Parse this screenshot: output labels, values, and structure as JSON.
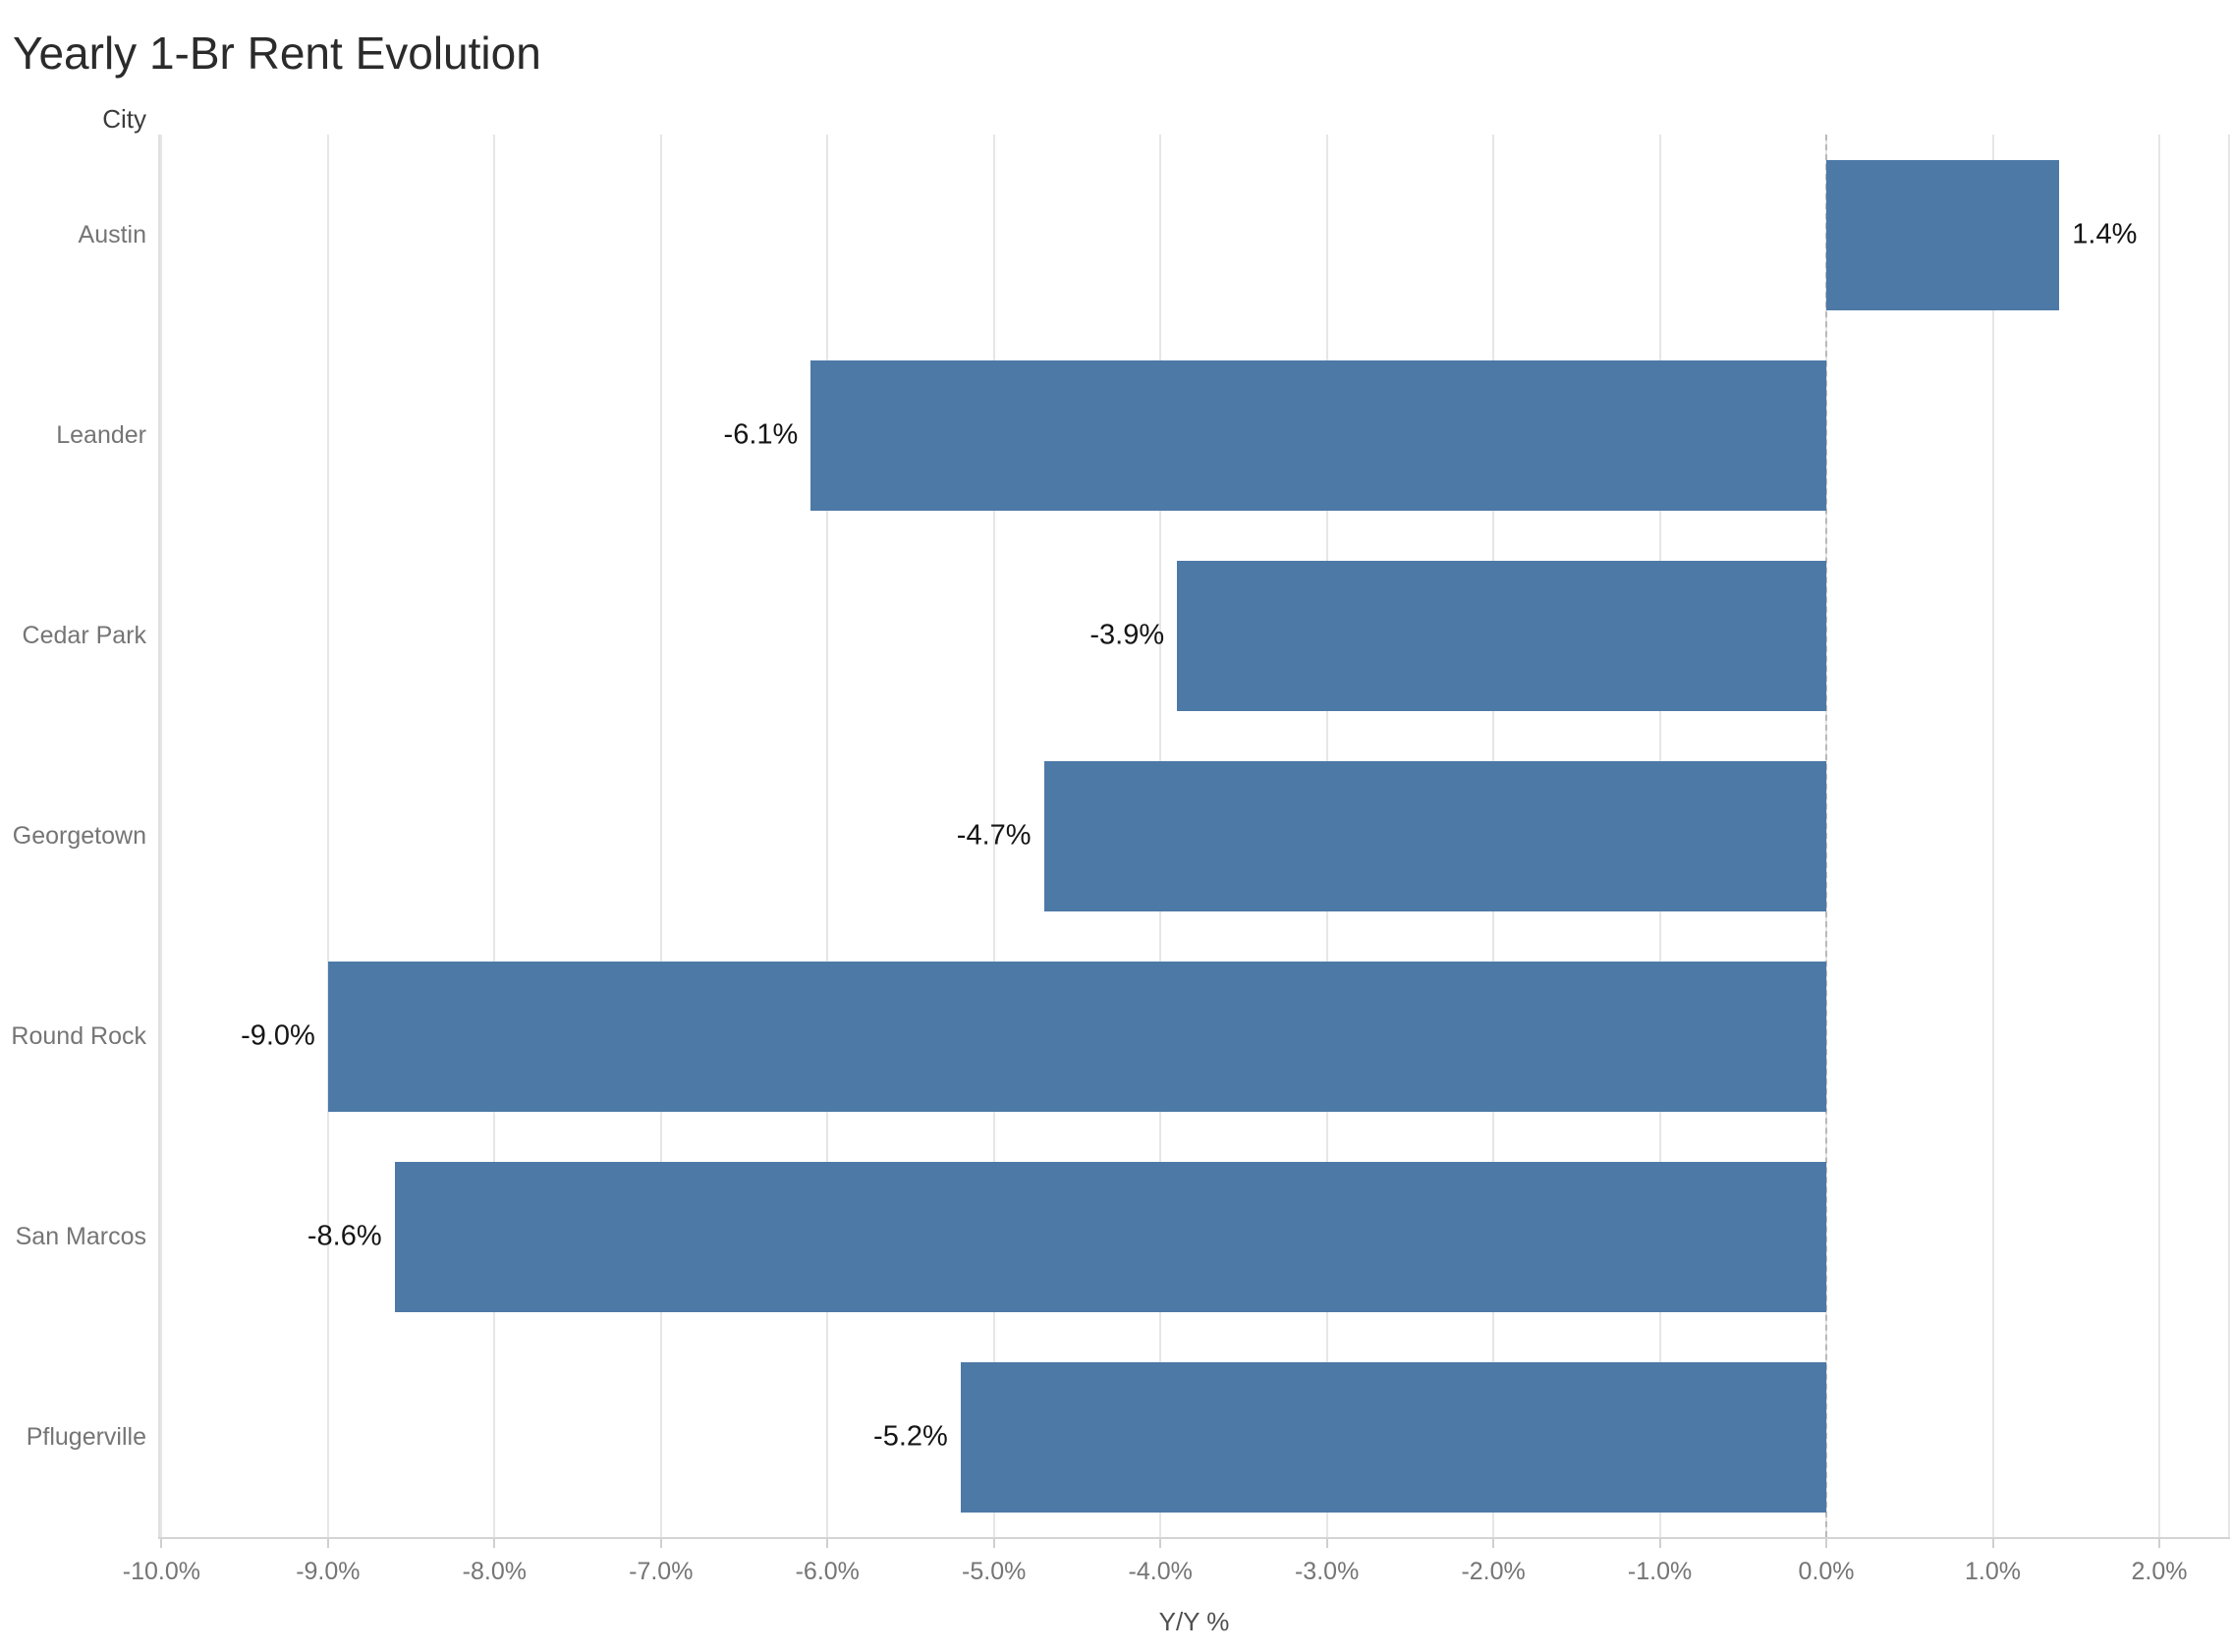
{
  "chart_data": {
    "type": "bar",
    "orientation": "horizontal",
    "title": "Yearly 1-Br Rent Evolution",
    "xlabel": "Y/Y %",
    "ylabel": "City",
    "categories": [
      "Austin",
      "Leander",
      "Cedar Park",
      "Georgetown",
      "Round Rock",
      "San Marcos",
      "Pflugerville"
    ],
    "values": [
      1.4,
      -6.1,
      -3.9,
      -4.7,
      -9.0,
      -8.6,
      -5.2
    ],
    "value_labels": [
      "1.4%",
      "-6.1%",
      "-3.9%",
      "-4.7%",
      "-9.0%",
      "-8.6%",
      "-5.2%"
    ],
    "xlim": [
      -10.02,
      2.425
    ],
    "xticks": [
      -10,
      -9,
      -8,
      -7,
      -6,
      -5,
      -4,
      -3,
      -2,
      -1,
      0,
      1,
      2
    ],
    "xtick_labels": [
      "-10.0%",
      "-9.0%",
      "-8.0%",
      "-7.0%",
      "-6.0%",
      "-5.0%",
      "-4.0%",
      "-3.0%",
      "-2.0%",
      "-1.0%",
      "0.0%",
      "1.0%",
      "2.0%"
    ],
    "grid": "vertical-light",
    "zero_line": "dashed",
    "legend": "none"
  },
  "colors": {
    "bar": "#4d79a7",
    "gridline": "#e6e6e6",
    "zero_line": "#b9b9b9",
    "axis_line": "#d4d4d4",
    "tick_mark": "#cfcfcf",
    "tick_text": "#757575",
    "value_text": "#151515",
    "header_text": "#3c3c3c",
    "title_text": "#2b2b2b",
    "background": "#ffffff"
  }
}
